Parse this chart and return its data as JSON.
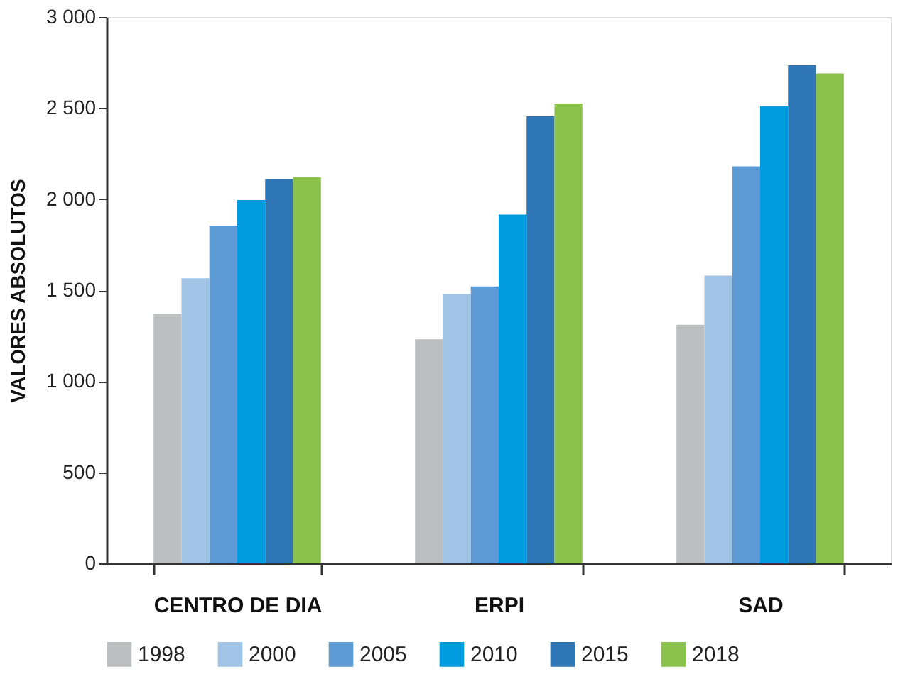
{
  "chart_data": {
    "type": "bar",
    "ylabel": "VALORES ABSOLUTOS",
    "categories": [
      "CENTRO DE DIA",
      "ERPI",
      "SAD"
    ],
    "series": [
      {
        "name": "1998",
        "color": "#bdbec0",
        "values": [
          1370,
          1230,
          1310
        ]
      },
      {
        "name": "2000",
        "color": "#a1c3e5",
        "values": [
          1565,
          1480,
          1580
        ]
      },
      {
        "name": "2005",
        "color": "#5e9bd4",
        "values": [
          1855,
          1520,
          2180
        ]
      },
      {
        "name": "2010",
        "color": "#009bde",
        "values": [
          1995,
          1915,
          2510
        ]
      },
      {
        "name": "2015",
        "color": "#2f76b6",
        "values": [
          2110,
          2455,
          2735
        ]
      },
      {
        "name": "2018",
        "color": "#8bc24b",
        "values": [
          2120,
          2525,
          2690
        ]
      }
    ],
    "ylim": [
      0,
      3000
    ],
    "yticks": [
      0,
      500,
      {
        "value": 1000,
        "label": "1 000"
      },
      {
        "value": 1500,
        "label": "1 500"
      },
      {
        "value": 2000,
        "label": "2 000"
      },
      {
        "value": 2500,
        "label": "2 500"
      },
      {
        "value": 3000,
        "label": "3 000"
      }
    ],
    "grid": false,
    "legend": "bottom"
  }
}
